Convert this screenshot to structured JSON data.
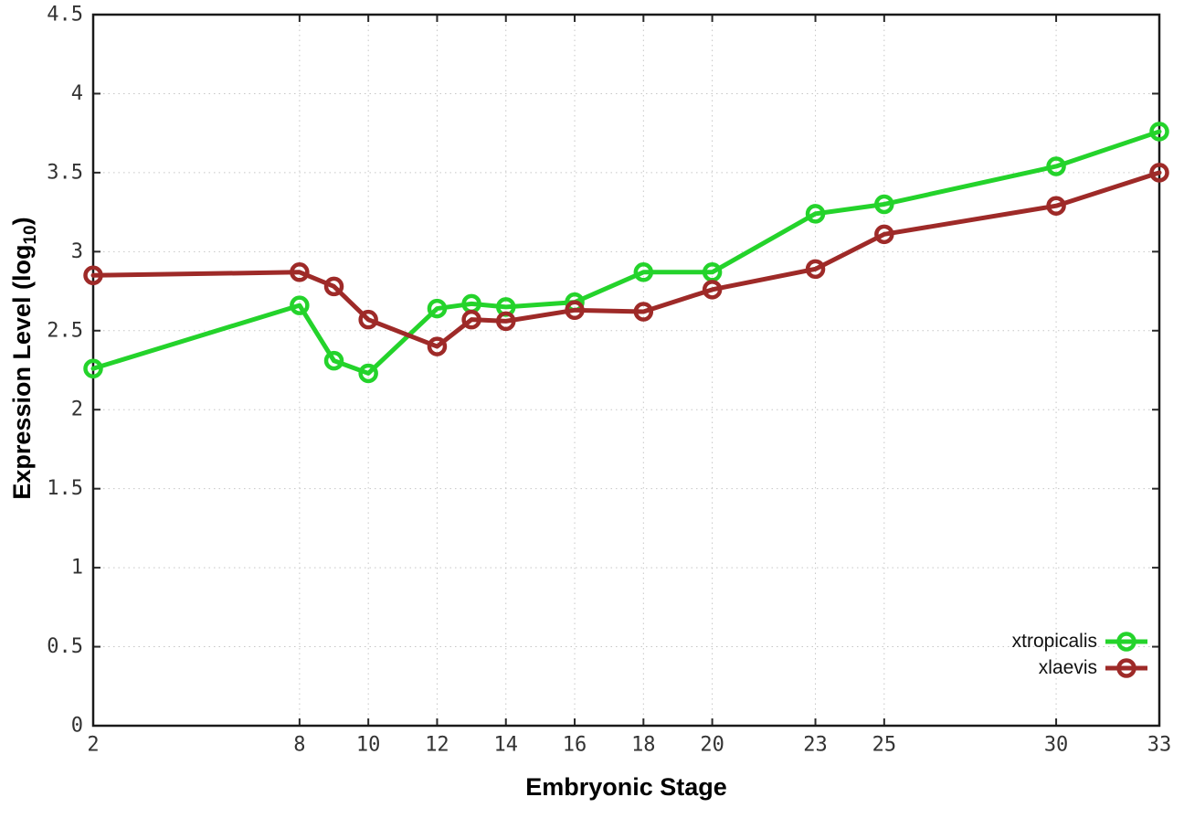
{
  "labels": {
    "xlabel": "Embryonic Stage",
    "ylabel_main": "Expression Level (log",
    "ylabel_sub": "10",
    "ylabel_close": ")"
  },
  "chart_data": {
    "type": "line",
    "title": "",
    "xlabel": "Embryonic Stage",
    "ylabel": "Expression Level (log10)",
    "x": [
      2,
      8,
      9,
      10,
      12,
      13,
      14,
      16,
      18,
      20,
      23,
      25,
      30,
      33
    ],
    "series": [
      {
        "name": "xtropicalis",
        "color": "#24d32b",
        "marker": "open-circle",
        "values": [
          2.26,
          2.66,
          2.31,
          2.23,
          2.64,
          2.67,
          2.65,
          2.68,
          2.87,
          2.87,
          3.24,
          3.3,
          3.54,
          3.76
        ]
      },
      {
        "name": "xlaevis",
        "color": "#9e2a28",
        "marker": "open-circle",
        "values": [
          2.85,
          2.87,
          2.78,
          2.57,
          2.4,
          2.57,
          2.56,
          2.63,
          2.62,
          2.76,
          2.89,
          3.11,
          3.29,
          3.5
        ]
      }
    ],
    "xticks": [
      2,
      8,
      10,
      12,
      14,
      16,
      18,
      20,
      23,
      25,
      30,
      33
    ],
    "yticks": [
      0,
      0.5,
      1,
      1.5,
      2,
      2.5,
      3,
      3.5,
      4,
      4.5
    ],
    "xlim": [
      2,
      33
    ],
    "ylim": [
      0,
      4.5
    ],
    "grid": true,
    "legend_position": "bottom-right"
  },
  "style": {
    "grid_color": "#c6c6c6",
    "axis_color": "#1a1a1a",
    "tick_color": "#2a2a2a",
    "tick_label_color": "#333333",
    "line_width": 5,
    "marker_radius": 8.5,
    "marker_stroke": 4.5
  }
}
